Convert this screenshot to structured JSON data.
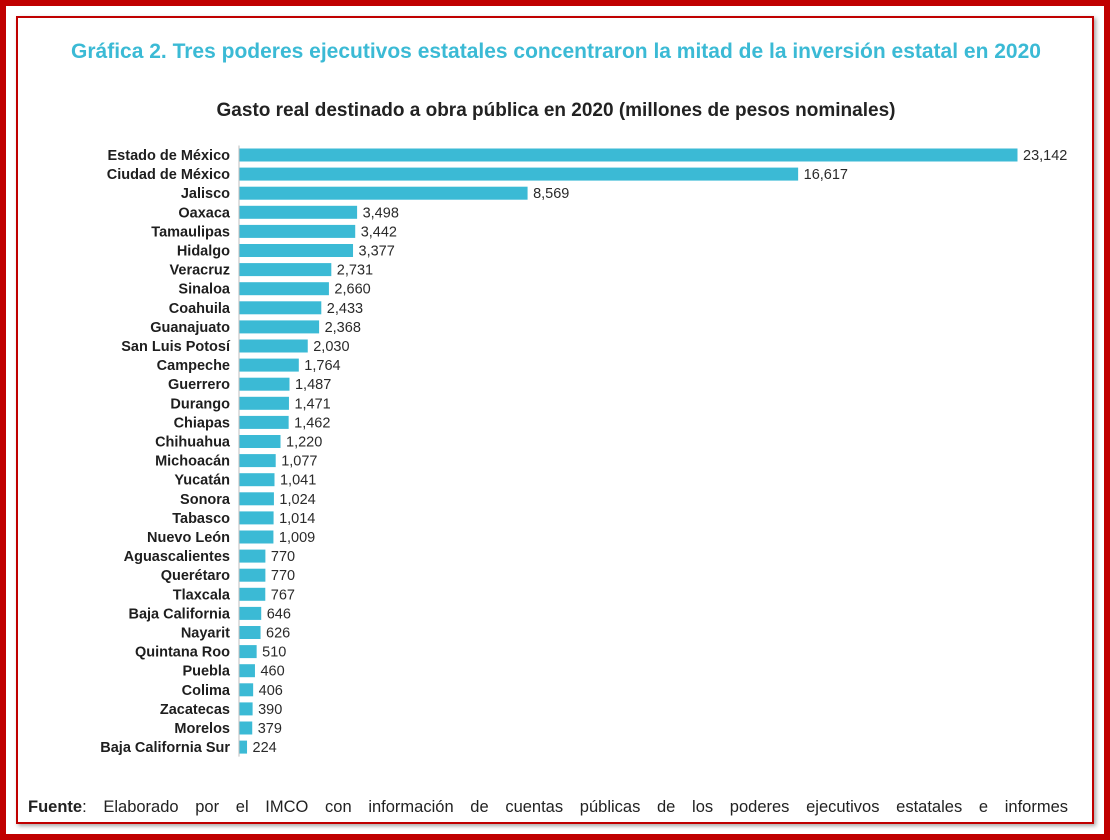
{
  "title": "Gráfica 2. Tres poderes ejecutivos estatales concentraron la mitad de la inversión estatal en 2020",
  "source": {
    "label": "Fuente",
    "text": ": Elaborado por el IMCO con información de cuentas públicas de los poderes ejecutivos estatales e informes"
  },
  "colors": {
    "bar": "#3bbad5",
    "title": "#3bbad5",
    "frame": "#c00000"
  },
  "chart_data": {
    "type": "bar",
    "orientation": "horizontal",
    "title": "Gasto real destinado a obra pública en 2020 (millones de pesos nominales)",
    "categories": [
      "Estado de México",
      "Ciudad de México",
      "Jalisco",
      "Oaxaca",
      "Tamaulipas",
      "Hidalgo",
      "Veracruz",
      "Sinaloa",
      "Coahuila",
      "Guanajuato",
      "San Luis Potosí",
      "Campeche",
      "Guerrero",
      "Durango",
      "Chiapas",
      "Chihuahua",
      "Michoacán",
      "Yucatán",
      "Sonora",
      "Tabasco",
      "Nuevo León",
      "Aguascalientes",
      "Querétaro",
      "Tlaxcala",
      "Baja California",
      "Nayarit",
      "Quintana Roo",
      "Puebla",
      "Colima",
      "Zacatecas",
      "Morelos",
      "Baja California Sur"
    ],
    "values": [
      23142,
      16617,
      8569,
      3498,
      3442,
      3377,
      2731,
      2660,
      2433,
      2368,
      2030,
      1764,
      1487,
      1471,
      1462,
      1220,
      1077,
      1041,
      1024,
      1014,
      1009,
      770,
      770,
      767,
      646,
      626,
      510,
      460,
      406,
      390,
      379,
      224
    ],
    "value_labels": [
      "23,142",
      "16,617",
      "8,569",
      "3,498",
      "3,442",
      "3,377",
      "2,731",
      "2,660",
      "2,433",
      "2,368",
      "2,030",
      "1,764",
      "1,487",
      "1,471",
      "1,462",
      "1,220",
      "1,077",
      "1,041",
      "1,024",
      "1,014",
      "1,009",
      "770",
      "770",
      "767",
      "646",
      "626",
      "510",
      "460",
      "406",
      "390",
      "379",
      "224"
    ],
    "xlim": [
      0,
      23142
    ],
    "grid": false,
    "legend": "none"
  }
}
